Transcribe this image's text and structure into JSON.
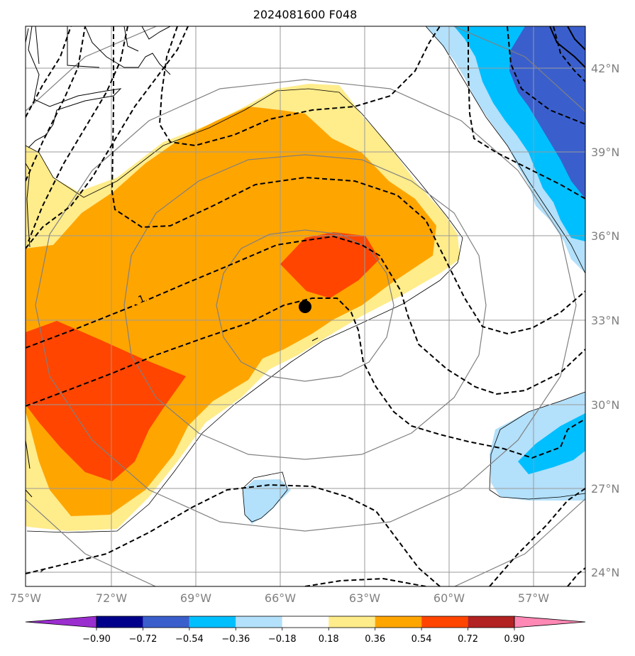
{
  "title": "2024081600 F048",
  "map": {
    "lon_range": [
      -75,
      -55
    ],
    "lat_range": [
      23.5,
      43.5
    ],
    "lat_ticks": [
      {
        "value": 24,
        "label": "24°N"
      },
      {
        "value": 27,
        "label": "27°N"
      },
      {
        "value": 30,
        "label": "30°N"
      },
      {
        "value": 33,
        "label": "33°N"
      },
      {
        "value": 36,
        "label": "36°N"
      },
      {
        "value": 39,
        "label": "39°N"
      },
      {
        "value": 42,
        "label": "42°N"
      }
    ],
    "lon_ticks": [
      {
        "value": -75,
        "label": "75°W"
      },
      {
        "value": -72,
        "label": "72°W"
      },
      {
        "value": -69,
        "label": "69°W"
      },
      {
        "value": -66,
        "label": "66°W"
      },
      {
        "value": -63,
        "label": "63°W"
      },
      {
        "value": -60,
        "label": "60°W"
      },
      {
        "value": -57,
        "label": "57°W"
      }
    ],
    "storm_center": {
      "lon": -65.9,
      "lat": 33.5
    },
    "range_ring_radii_deg": [
      3.2,
      5.4,
      7.8,
      10.3
    ],
    "dashed_contour_label": "1"
  },
  "colorbar": {
    "tick_labels": [
      "−0.90",
      "−0.72",
      "−0.54",
      "−0.36",
      "−0.18",
      "0.18",
      "0.36",
      "0.54",
      "0.72",
      "0.90"
    ],
    "colors": [
      "#9a2ecf",
      "#00008b",
      "#3a5fcd",
      "#00bfff",
      "#b3e0fa",
      "#ffffff",
      "#ffec8b",
      "#ffa500",
      "#ff4500",
      "#b22222",
      "#ff88b4"
    ]
  },
  "colors": {
    "shade_light_yellow": "#ffec8b",
    "shade_orange": "#ffa500",
    "shade_red_orange": "#ff4500",
    "shade_light_blue": "#b3e0fa",
    "shade_sky_blue": "#00bfff",
    "shade_royal_blue": "#3a5fcd",
    "grid": "#9a9a9a",
    "range_ring": "#808080"
  }
}
